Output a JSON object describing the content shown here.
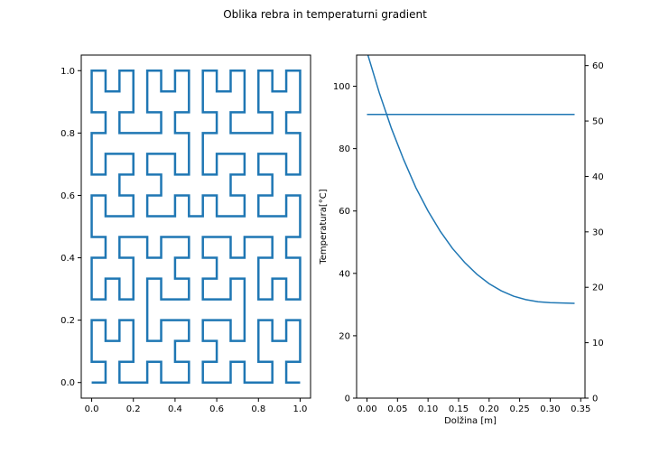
{
  "figure": {
    "title": "Oblika rebra in temperaturni gradient"
  },
  "chart_data": [
    {
      "type": "line",
      "name": "fin-shape",
      "title": "",
      "xlabel": "",
      "ylabel": "",
      "xlim": [
        -0.05,
        1.05
      ],
      "ylim": [
        -0.05,
        1.05
      ],
      "xticks": [
        "0.0",
        "0.2",
        "0.4",
        "0.6",
        "0.8",
        "1.0"
      ],
      "yticks": [
        "0.0",
        "0.2",
        "0.4",
        "0.6",
        "0.8",
        "1.0"
      ],
      "color": "#1f77b4",
      "curve": "Hilbert curve of order 4 on a 16x16 grid spanning [0,1] x [0,1]",
      "hilbert_order": 4,
      "grid": false
    },
    {
      "type": "line",
      "name": "temperature",
      "title": "",
      "xlabel": "Dolžina [m]",
      "ylabel": "Temperatura[°C]",
      "xlim": [
        -0.017,
        0.357
      ],
      "ylim": [
        0,
        110
      ],
      "y2lim": [
        0,
        61.9
      ],
      "xticks": [
        "0.00",
        "0.05",
        "0.10",
        "0.15",
        "0.20",
        "0.25",
        "0.30",
        "0.35"
      ],
      "yticks": [
        "0",
        "20",
        "40",
        "60",
        "80",
        "100"
      ],
      "y2ticks": [
        "0",
        "10",
        "20",
        "30",
        "40",
        "50",
        "60"
      ],
      "grid": false,
      "series": [
        {
          "axis": "left",
          "color": "#1f77b4",
          "x": [
            0.0,
            0.02,
            0.04,
            0.06,
            0.08,
            0.1,
            0.12,
            0.14,
            0.16,
            0.18,
            0.2,
            0.22,
            0.24,
            0.26,
            0.28,
            0.3,
            0.32,
            0.34
          ],
          "y": [
            111.0,
            98.0,
            86.5,
            76.5,
            67.5,
            60.0,
            53.5,
            48.0,
            43.5,
            39.7,
            36.7,
            34.4,
            32.7,
            31.6,
            30.9,
            30.6,
            30.5,
            30.4
          ]
        },
        {
          "axis": "right",
          "color": "#1f77b4",
          "x": [
            0.0,
            0.34
          ],
          "y": [
            51.2,
            51.2
          ]
        }
      ]
    }
  ]
}
